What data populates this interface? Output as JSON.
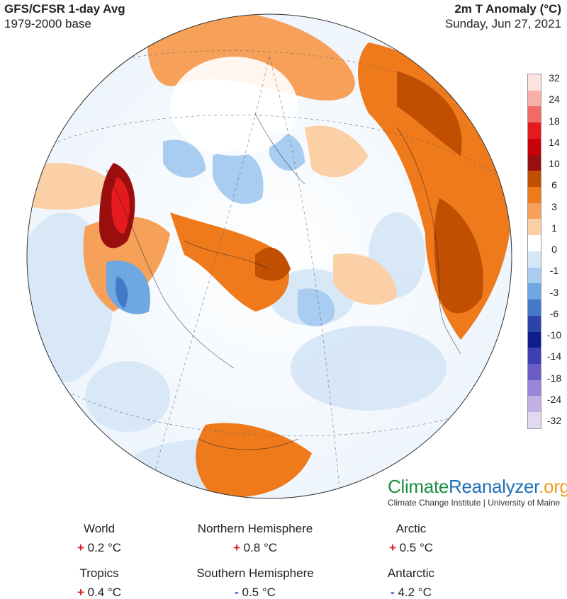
{
  "header": {
    "title": "GFS/CFSR 1-day Avg",
    "subtitle": "1979-2000 base",
    "right_title": "2m T Anomaly (°C)",
    "date": "Sunday, Jun 27, 2021"
  },
  "legend": {
    "labels": [
      "32",
      "24",
      "18",
      "14",
      "10",
      "6",
      "3",
      "1",
      "0",
      "-1",
      "-3",
      "-6",
      "-10",
      "-14",
      "-18",
      "-24",
      "-32"
    ],
    "colors": [
      "#fbe3df",
      "#f7b0aa",
      "#f16a66",
      "#e41a1c",
      "#c8000a",
      "#9b0e0e",
      "#c04f02",
      "#ee7a1c",
      "#f7a05a",
      "#fcd0a6",
      "#ffffff",
      "#d6e7f7",
      "#a9cdf1",
      "#6ea7e2",
      "#4479c8",
      "#2b44a8",
      "#101c8c",
      "#3d3fb4",
      "#6c5cc6",
      "#9a86d8",
      "#c2b0e6",
      "#e2d8f2"
    ]
  },
  "brand": {
    "part1": "Climate",
    "part2": "Reanalyzer",
    "part3": ".org",
    "institute": "Climate Change Institute | University of Maine"
  },
  "stats": [
    {
      "name": "World",
      "sign": "+",
      "value": "0.2 °C"
    },
    {
      "name": "Northern Hemisphere",
      "sign": "+",
      "value": "0.8 °C"
    },
    {
      "name": "Arctic",
      "sign": "+",
      "value": "0.5 °C"
    },
    {
      "name": "Tropics",
      "sign": "+",
      "value": "0.4 °C"
    },
    {
      "name": "Southern Hemisphere",
      "sign": "-",
      "value": "0.5 °C"
    },
    {
      "name": "Antarctic",
      "sign": "-",
      "value": "4.2 °C"
    }
  ]
}
